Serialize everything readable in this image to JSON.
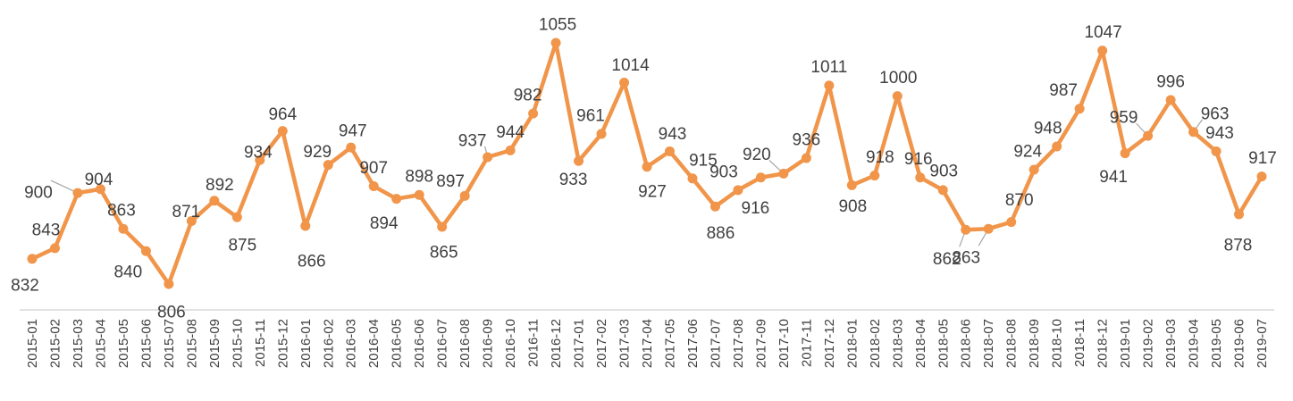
{
  "chart_data": {
    "type": "line",
    "title": "",
    "xlabel": "",
    "ylabel": "",
    "ylim": [
      760,
      1070
    ],
    "grid": false,
    "legend": "none",
    "colors": {
      "series": "#F0954A",
      "axis": "#d9d9d9",
      "text": "#404040",
      "leader": "#a6a6a6"
    },
    "categories": [
      "2015-01",
      "2015-02",
      "2015-03",
      "2015-04",
      "2015-05",
      "2015-06",
      "2015-07",
      "2015-08",
      "2015-09",
      "2015-10",
      "2015-11",
      "2015-12",
      "2016-01",
      "2016-02",
      "2016-03",
      "2016-04",
      "2016-05",
      "2016-06",
      "2016-07",
      "2016-08",
      "2016-09",
      "2016-10",
      "2016-11",
      "2016-12",
      "2017-01",
      "2017-02",
      "2017-03",
      "2017-04",
      "2017-05",
      "2017-06",
      "2017-07",
      "2017-08",
      "2017-09",
      "2017-10",
      "2017-11",
      "2017-12",
      "2018-01",
      "2018-02",
      "2018-03",
      "2018-04",
      "2018-05",
      "2018-06",
      "2018-07",
      "2018-08",
      "2018-09",
      "2018-10",
      "2018-11",
      "2018-12",
      "2019-01",
      "2019-02",
      "2019-03",
      "2019-04",
      "2019-05",
      "2019-06",
      "2019-07"
    ],
    "series": [
      {
        "values": [
          832,
          843,
          900,
          904,
          863,
          840,
          806,
          871,
          892,
          875,
          934,
          964,
          866,
          929,
          947,
          907,
          894,
          898,
          865,
          897,
          937,
          944,
          982,
          1055,
          933,
          961,
          1014,
          927,
          943,
          915,
          886,
          903,
          916,
          920,
          936,
          1011,
          908,
          918,
          1000,
          916,
          903,
          862,
          863,
          870,
          924,
          948,
          987,
          1047,
          941,
          959,
          996,
          963,
          943,
          878,
          917
        ]
      }
    ]
  }
}
